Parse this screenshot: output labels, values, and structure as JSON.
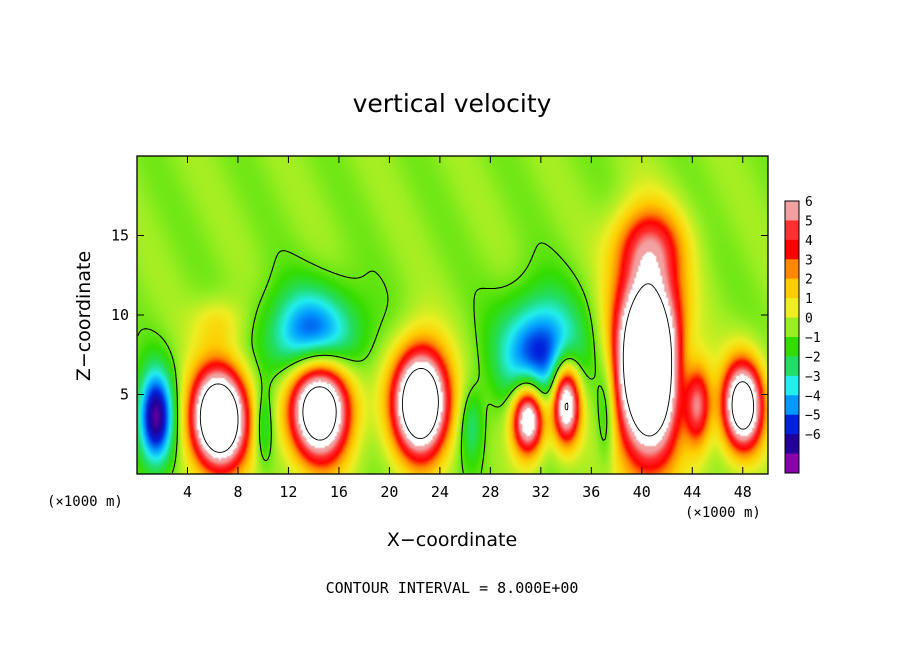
{
  "chart_data": {
    "type": "heatmap",
    "title": "vertical velocity",
    "xlabel": "X−coordinate",
    "ylabel": "Z−coordinate",
    "x_unit": "(×1000 m)",
    "y_unit": "(×1000 m)",
    "xlim": [
      0,
      50
    ],
    "ylim": [
      0,
      20
    ],
    "x_ticks": [
      4,
      8,
      12,
      16,
      20,
      24,
      28,
      32,
      36,
      40,
      44,
      48
    ],
    "x_tick_labels": [
      "4",
      "8",
      "12",
      "16",
      "20",
      "24",
      "28",
      "32",
      "36",
      "40",
      "44",
      "48"
    ],
    "y_ticks": [
      5,
      10,
      15
    ],
    "y_tick_labels": [
      "5",
      "10",
      "15"
    ],
    "contour_interval_text": "CONTOUR INTERVAL = 8.000E+00",
    "colorbar": {
      "min": -6,
      "max": 6,
      "labels": [
        "6",
        "5",
        "4",
        "3",
        "2",
        "1",
        "0",
        "−1",
        "−2",
        "−3",
        "−4",
        "−5",
        "−6"
      ],
      "colors": [
        "#f2a0a0",
        "#ff3030",
        "#ff0000",
        "#ff8800",
        "#ffcc00",
        "#eeee22",
        "#99ee22",
        "#33dd00",
        "#22dd66",
        "#22eeee",
        "#0099ff",
        "#0022dd",
        "#220099",
        "#8800aa"
      ]
    },
    "features": [
      {
        "kind": "updraft",
        "x": 6.5,
        "z": 3.5,
        "rx": 2.8,
        "rz": 4.0,
        "peak": 12
      },
      {
        "kind": "updraft",
        "x": 14.5,
        "z": 4.2,
        "rx": 3.0,
        "rz": 4.2,
        "peak": 11
      },
      {
        "kind": "updraft",
        "x": 22.5,
        "z": 4.5,
        "rx": 2.7,
        "rz": 4.2,
        "peak": 12
      },
      {
        "kind": "updraft",
        "x": 31.0,
        "z": 3.5,
        "rx": 1.6,
        "rz": 2.8,
        "peak": 9
      },
      {
        "kind": "updraft",
        "x": 34.0,
        "z": 4.5,
        "rx": 1.4,
        "rz": 3.2,
        "peak": 9
      },
      {
        "kind": "updraft",
        "x": 40.5,
        "z": 7.0,
        "rx": 3.2,
        "rz": 7.5,
        "peak": 14
      },
      {
        "kind": "updraft",
        "x": 44.3,
        "z": 4.5,
        "rx": 1.4,
        "rz": 3.5,
        "peak": 9
      },
      {
        "kind": "updraft",
        "x": 48.0,
        "z": 4.3,
        "rx": 2.0,
        "rz": 3.5,
        "peak": 10
      },
      {
        "kind": "downdraft",
        "x": 1.5,
        "z": 3.5,
        "rx": 1.8,
        "rz": 3.8,
        "peak": -6
      },
      {
        "kind": "downdraft",
        "x": 14.0,
        "z": 8.5,
        "rx": 4.5,
        "rz": 3.8,
        "peak": -5
      },
      {
        "kind": "downdraft",
        "x": 32.0,
        "z": 7.5,
        "rx": 4.0,
        "rz": 4.5,
        "peak": -5
      },
      {
        "kind": "downdraft",
        "x": 44.0,
        "z": 5.0,
        "rx": 1.5,
        "rz": 4.0,
        "peak": -5
      },
      {
        "kind": "downdraft",
        "x": 10.0,
        "z": 3.0,
        "rx": 1.0,
        "rz": 3.0,
        "peak": -2
      },
      {
        "kind": "downdraft",
        "x": 26.5,
        "z": 3.0,
        "rx": 1.2,
        "rz": 3.0,
        "peak": -2
      },
      {
        "kind": "downdraft",
        "x": 37.2,
        "z": 4.0,
        "rx": 1.0,
        "rz": 4.5,
        "peak": -2
      },
      {
        "kind": "weak_updraft",
        "x": 40.5,
        "z": 14.5,
        "rx": 3.5,
        "rz": 3.0,
        "peak": 3
      },
      {
        "kind": "weak_updraft",
        "x": 6.5,
        "z": 9.5,
        "rx": 2.5,
        "rz": 2.0,
        "peak": 1.5
      }
    ]
  }
}
